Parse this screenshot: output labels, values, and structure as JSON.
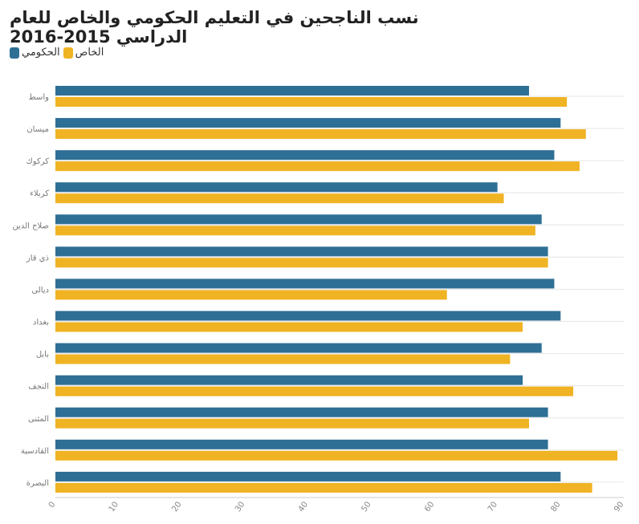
{
  "chart_data": {
    "type": "bar",
    "orientation": "horizontal",
    "title": "نسب الناجحين في التعليم الحكومي والخاص للعام الدراسي 2015-2016",
    "categories": [
      "واسط",
      "ميسان",
      "كركوك",
      "كربلاء",
      "صلاح الدين",
      "ذي قار",
      "ديالى",
      "بغداد",
      "بابل",
      "النجف",
      "المثنى",
      "القادسية",
      "البصرة"
    ],
    "series": [
      {
        "name": "الحكومي",
        "color": "#2e6f96",
        "values": [
          75,
          80,
          79,
          70,
          77,
          78,
          79,
          80,
          77,
          74,
          78,
          78,
          80
        ]
      },
      {
        "name": "الخاص",
        "color": "#f0b323",
        "values": [
          81,
          84,
          83,
          71,
          76,
          78,
          62,
          74,
          72,
          82,
          75,
          89,
          85
        ]
      }
    ],
    "xlim": [
      0,
      90
    ],
    "xticks": [
      0,
      10,
      20,
      30,
      40,
      50,
      60,
      70,
      80,
      90
    ],
    "grid": true,
    "legend_position": "top-left"
  }
}
